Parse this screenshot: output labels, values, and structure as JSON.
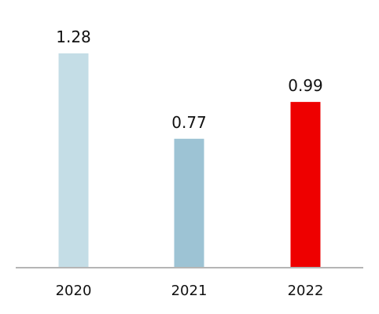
{
  "chart_data": {
    "type": "bar",
    "categories": [
      "2020",
      "2021",
      "2022"
    ],
    "values": [
      1.28,
      0.77,
      0.99
    ],
    "data_labels": [
      "1.28",
      "0.77",
      "0.99"
    ],
    "title": "",
    "xlabel": "",
    "ylabel": "",
    "ylim": [
      0,
      1.28
    ],
    "grid": false,
    "legend": "none",
    "bar_colors": [
      "#c4dde6",
      "#9dc3d4",
      "#ee0000"
    ],
    "axis_color": "#b5b5b5"
  }
}
